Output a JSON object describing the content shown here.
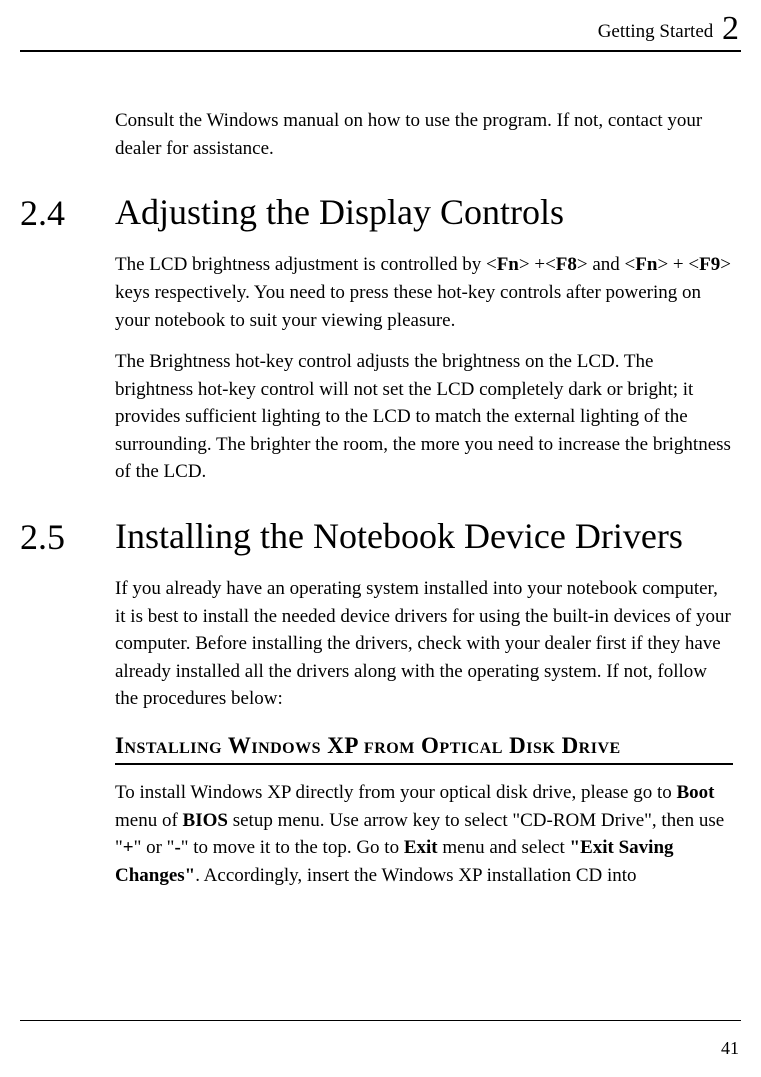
{
  "header": {
    "title": "Getting Started",
    "chapter_number": "2"
  },
  "intro_paragraph": "Consult the Windows manual on how to use the program. If not, contact your dealer for assistance.",
  "section_24": {
    "number": "2.4",
    "title": "Adjusting the Display Controls",
    "p1_pre": "The LCD brightness adjustment is controlled by <",
    "p1_fn1": "Fn",
    "p1_mid1": "> +<",
    "p1_f8": "F8",
    "p1_mid2": "> and <",
    "p1_fn2": "Fn",
    "p1_mid3": "> + <",
    "p1_f9": "F9",
    "p1_post": "> keys respectively. You need to press these hot-key controls after powering on your notebook to suit your viewing pleasure.",
    "p2": "The Brightness hot-key control adjusts the brightness on the LCD. The brightness hot-key control will not set the LCD completely dark or bright; it provides sufficient lighting to the LCD to match the external lighting of the surrounding. The brighter the room, the more you need to increase the brightness of the LCD."
  },
  "section_25": {
    "number": "2.5",
    "title": "Installing the Notebook Device Drivers",
    "p1": "If you already have an operating system installed into your notebook computer, it is best to install the needed device drivers for using the built-in devices of your computer. Before installing the drivers, check with your dealer first if they have already installed all the drivers along with the operating system. If not, follow the procedures below:",
    "subheading": "Installing Windows XP from Optical Disk Drive",
    "p2_a": "To install Windows XP directly from your optical disk drive, please go to ",
    "p2_boot": "Boot",
    "p2_b": " menu of ",
    "p2_bios": "BIOS",
    "p2_c": " setup menu. Use arrow key to select \"CD-ROM Drive\", then use \"",
    "p2_plus": "+",
    "p2_d": "\" or \"",
    "p2_minus": "-",
    "p2_e": "\" to move it to the top. Go to ",
    "p2_exit": "Exit",
    "p2_f": " menu and select ",
    "p2_esc": "\"Exit Saving Changes\"",
    "p2_g": ". Accordingly, insert the Windows XP installation CD into"
  },
  "page_number": "41"
}
